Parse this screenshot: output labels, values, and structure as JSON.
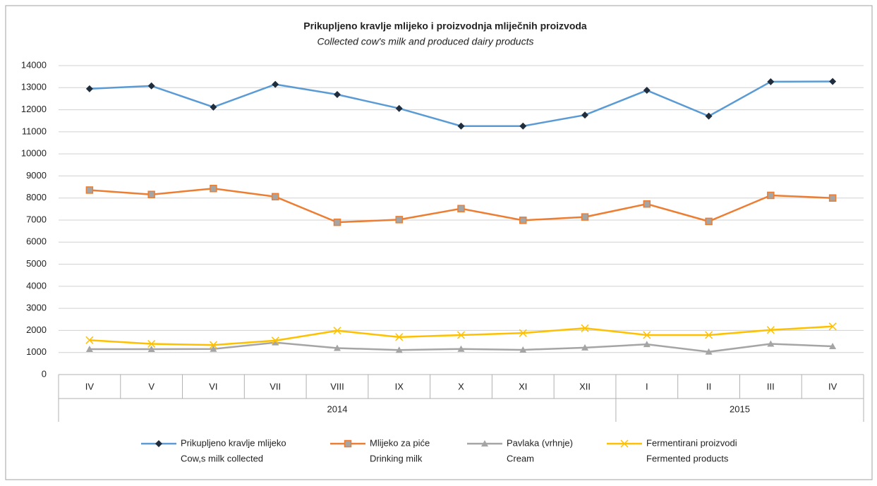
{
  "chart_data": {
    "type": "line",
    "title": "Prikupljeno  kravlje mlijeko i proizvodnja mliječnih proizvoda",
    "subtitle": "Collected cow's milk and produced dairy products",
    "categories": [
      "IV",
      "V",
      "VI",
      "VII",
      "VIII",
      "IX",
      "X",
      "XI",
      "XII",
      "I",
      "II",
      "III",
      "IV"
    ],
    "groups": [
      {
        "name": "2014",
        "count": 9
      },
      {
        "name": "2015",
        "count": 4
      }
    ],
    "series": [
      {
        "name": "Prikupljeno kravlje mlijeko",
        "subname": "Cow,s milk collected",
        "color": "#5b9bd5",
        "marker": "diamond",
        "values": [
          12950,
          13080,
          12120,
          13150,
          12690,
          12060,
          11260,
          11260,
          11760,
          12880,
          11710,
          13270,
          13280
        ]
      },
      {
        "name": "Mlijeko za piće",
        "subname": "Drinking milk",
        "color": "#ed7d31",
        "marker": "square",
        "values": [
          8360,
          8160,
          8430,
          8060,
          6900,
          7020,
          7520,
          6990,
          7140,
          7730,
          6940,
          8120,
          8000
        ]
      },
      {
        "name": "Pavlaka (vrhnje)",
        "subname": "Cream",
        "color": "#a5a5a5",
        "marker": "triangle",
        "values": [
          1150,
          1150,
          1160,
          1450,
          1200,
          1110,
          1160,
          1120,
          1220,
          1370,
          1030,
          1390,
          1280
        ]
      },
      {
        "name": "Fermentirani proizvodi",
        "subname": "Fermented products",
        "color": "#ffc000",
        "marker": "x",
        "values": [
          1560,
          1390,
          1340,
          1540,
          1990,
          1700,
          1790,
          1880,
          2100,
          1790,
          1790,
          2020,
          2180
        ]
      }
    ],
    "ylim": [
      0,
      14000
    ],
    "yticks": [
      0,
      1000,
      2000,
      3000,
      4000,
      5000,
      6000,
      7000,
      8000,
      9000,
      10000,
      11000,
      12000,
      13000,
      14000
    ],
    "grid": true,
    "legend": "bottom"
  }
}
